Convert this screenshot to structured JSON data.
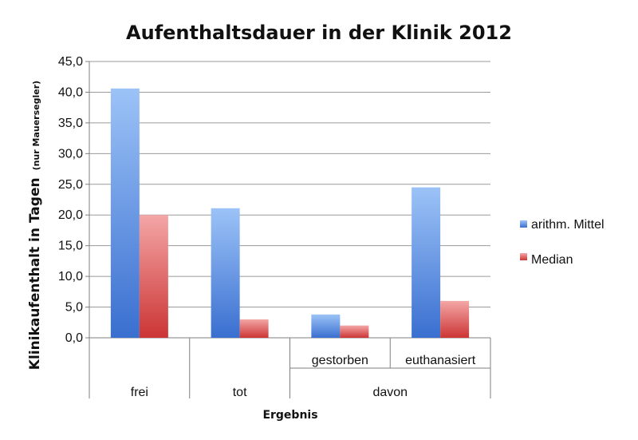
{
  "chart_data": {
    "type": "bar",
    "title": "Aufenthaltsdauer in der Klinik 2012",
    "xlabel": "Ergebnis",
    "ylabel": "Klinikaufenthalt in Tagen",
    "ylabel_sub": "(nur Mauersegler)",
    "ylim": [
      0,
      45
    ],
    "ytick_labels": [
      "0,0",
      "5,0",
      "10,0",
      "15,0",
      "20,0",
      "25,0",
      "30,0",
      "35,0",
      "40,0",
      "45,0"
    ],
    "categories": [
      "frei",
      "tot",
      "gestorben",
      "euthanasiert"
    ],
    "category_groups": [
      {
        "label": "frei",
        "members": [
          "frei"
        ]
      },
      {
        "label": "tot",
        "members": [
          "tot"
        ]
      },
      {
        "label": "davon",
        "members": [
          "gestorben",
          "euthanasiert"
        ]
      }
    ],
    "series": [
      {
        "name": "arithm. Mittel",
        "color": "#4a7fd8",
        "values": [
          40.6,
          21.1,
          3.8,
          24.5
        ]
      },
      {
        "name": "Median",
        "color": "#d94040",
        "values": [
          20.0,
          3.0,
          2.0,
          6.0
        ]
      }
    ],
    "grid": true,
    "legend_position": "right"
  }
}
